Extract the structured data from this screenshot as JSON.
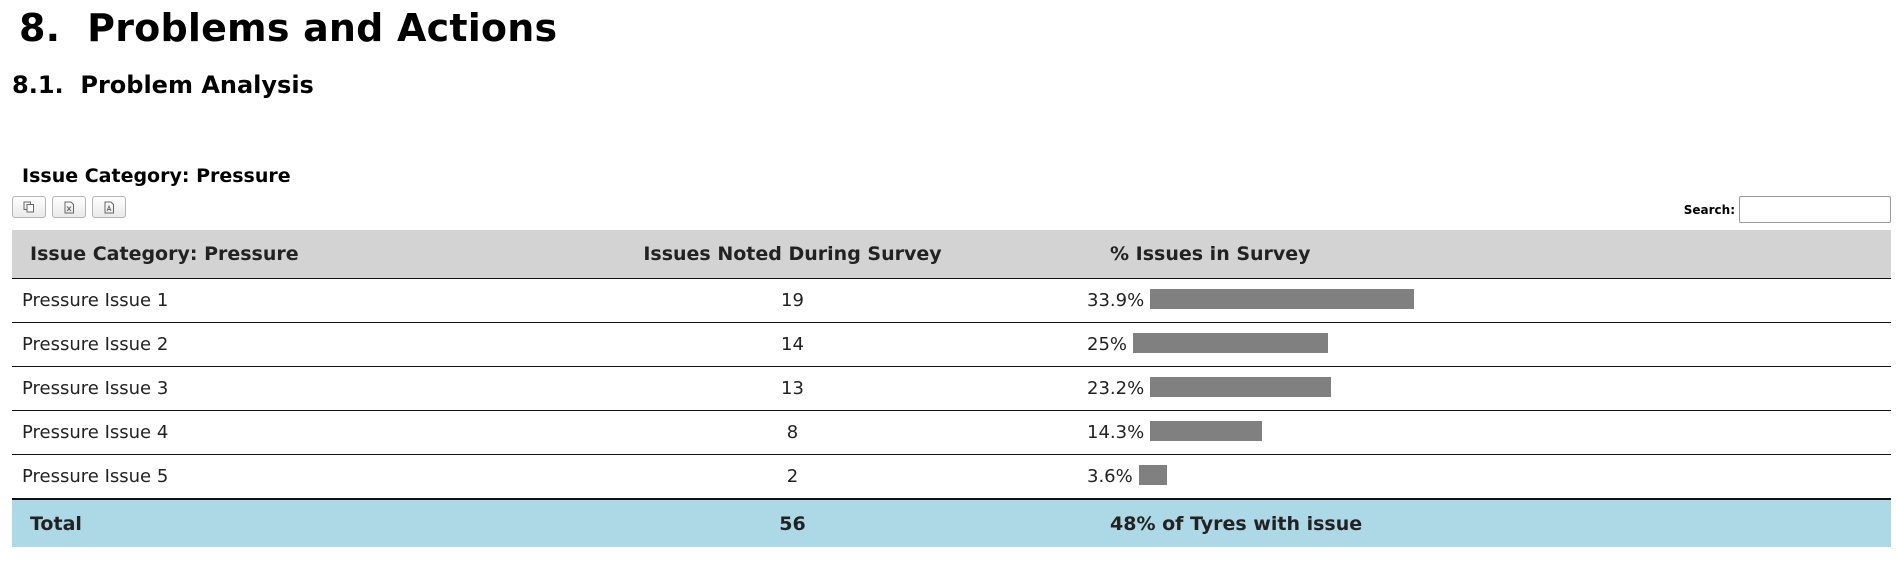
{
  "section": {
    "number": "8.",
    "title": "Problems and Actions"
  },
  "subsection": {
    "number": "8.1.",
    "title": "Problem Analysis"
  },
  "table_caption": "Issue Category: Pressure",
  "export_buttons": [
    {
      "icon": "copy-icon"
    },
    {
      "icon": "excel-icon"
    },
    {
      "icon": "pdf-icon"
    }
  ],
  "search": {
    "label": "Search:",
    "value": ""
  },
  "table": {
    "headers": {
      "category": "Issue Category: Pressure",
      "count": "Issues Noted During Survey",
      "percent": "% Issues in Survey"
    },
    "rows": [
      {
        "category": "Pressure Issue 1",
        "count": "19",
        "percent": "33.9%",
        "fraction": 0.339
      },
      {
        "category": "Pressure Issue 2",
        "count": "14",
        "percent": "25%",
        "fraction": 0.25
      },
      {
        "category": "Pressure Issue 3",
        "count": "13",
        "percent": "23.2%",
        "fraction": 0.232
      },
      {
        "category": "Pressure Issue 4",
        "count": "8",
        "percent": "14.3%",
        "fraction": 0.143
      },
      {
        "category": "Pressure Issue 5",
        "count": "2",
        "percent": "3.6%",
        "fraction": 0.036
      }
    ],
    "footer": {
      "label": "Total",
      "count": "56",
      "percent": "48% of Tyres with issue"
    }
  },
  "colors": {
    "header_bg": "#d3d3d3",
    "footer_bg": "#add8e6",
    "bar": "#808080"
  }
}
